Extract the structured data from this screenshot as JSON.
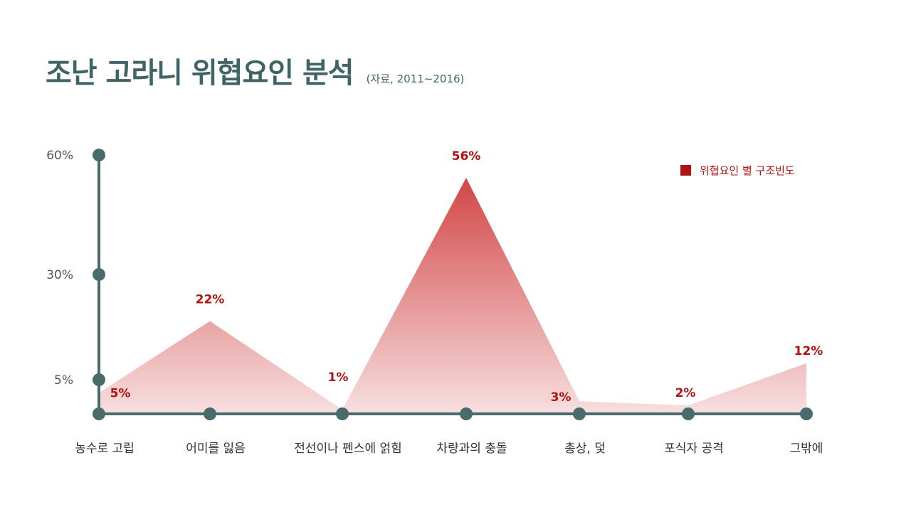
{
  "header": {
    "title": "조난 고라니 위협요인 분석",
    "subtitle": "(자료, 2011~2016)"
  },
  "chart_data": {
    "type": "area",
    "title": "조난 고라니 위협요인 분석",
    "subtitle": "(자료, 2011~2016)",
    "categories": [
      "농수로 고립",
      "어미를 잃음",
      "전선이나 펜스에 얽힘",
      "차량과의 충돌",
      "총상, 덫",
      "포식자 공격",
      "그밖에"
    ],
    "series": [
      {
        "name": "위협요인 별 구조빈도",
        "values": [
          5,
          22,
          1,
          56,
          3,
          2,
          12
        ]
      }
    ],
    "data_labels": [
      "5%",
      "22%",
      "1%",
      "56%",
      "3%",
      "2%",
      "12%"
    ],
    "y_ticks": [
      {
        "value": 60,
        "label": "60%"
      },
      {
        "value": 30,
        "label": "30%"
      },
      {
        "value": 5,
        "label": "5%"
      }
    ],
    "ylim": [
      0,
      60
    ],
    "grid": false,
    "legend_position": "top-right",
    "colors": {
      "area_top": "#d03c3c",
      "area_bottom": "#f7dede",
      "axis": "#4a6b6c",
      "label": "#b11212"
    }
  }
}
